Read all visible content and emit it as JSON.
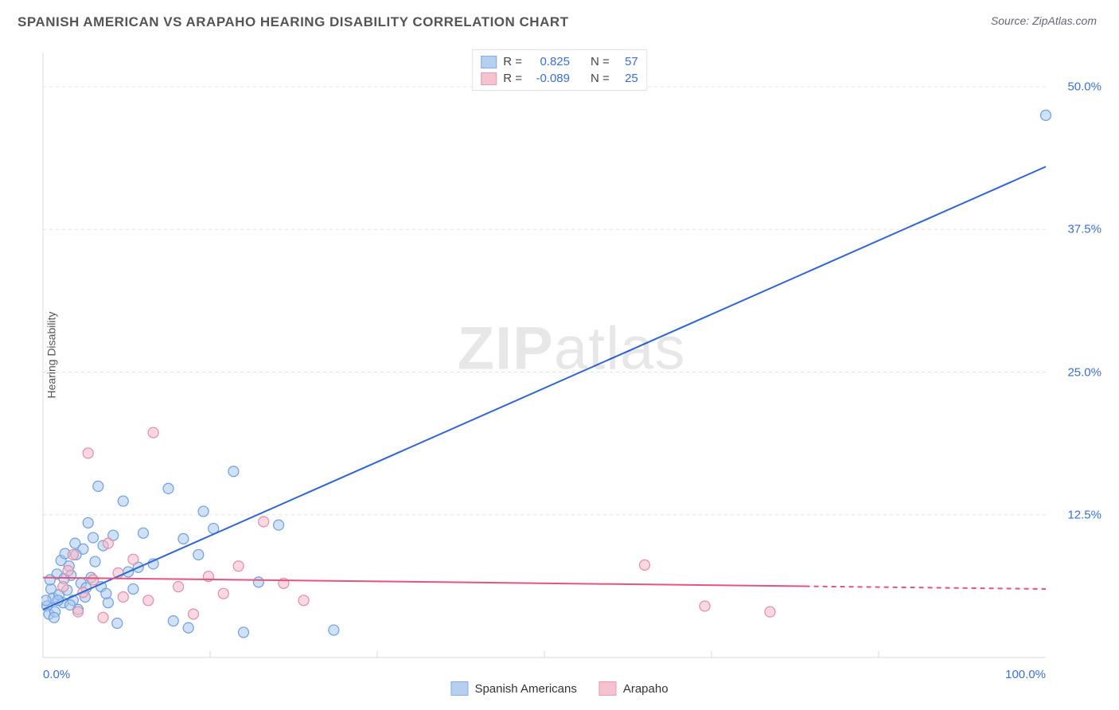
{
  "title": "SPANISH AMERICAN VS ARAPAHO HEARING DISABILITY CORRELATION CHART",
  "source": "Source: ZipAtlas.com",
  "ylabel": "Hearing Disability",
  "watermark_bold": "ZIP",
  "watermark_light": "atlas",
  "chart": {
    "type": "scatter-with-regression",
    "xlim": [
      0,
      100
    ],
    "ylim": [
      0,
      53
    ],
    "xticks": [
      0,
      100
    ],
    "xtick_labels": [
      "0.0%",
      "100.0%"
    ],
    "xtick_minor": [
      16.67,
      33.33,
      50,
      66.67,
      83.33
    ],
    "yticks": [
      12.5,
      25.0,
      37.5,
      50.0
    ],
    "ytick_labels": [
      "12.5%",
      "25.0%",
      "37.5%",
      "50.0%"
    ],
    "background_color": "#ffffff",
    "grid_color": "#e0e4e9",
    "axis_color": "#d5dae1",
    "marker_radius": 6.5,
    "marker_stroke_width": 1.2,
    "line_width": 2
  },
  "series": [
    {
      "name": "Spanish Americans",
      "fill": "#aac7ec",
      "fill_opacity": 0.55,
      "stroke": "#6f9fdd",
      "line_color": "#2f66d4",
      "R": "0.825",
      "N": "57",
      "regression": {
        "x1": 0,
        "y1": 4.2,
        "x2": 100,
        "y2": 43.0,
        "dashed_from_x": null
      },
      "points": [
        [
          100,
          47.5
        ],
        [
          0.4,
          4.5
        ],
        [
          0.6,
          3.8
        ],
        [
          0.8,
          6.0
        ],
        [
          1.0,
          5.2
        ],
        [
          1.2,
          4.0
        ],
        [
          1.4,
          7.3
        ],
        [
          1.6,
          5.5
        ],
        [
          1.8,
          8.5
        ],
        [
          2.0,
          4.8
        ],
        [
          2.2,
          9.1
        ],
        [
          2.4,
          5.9
        ],
        [
          2.6,
          8.0
        ],
        [
          2.8,
          7.2
        ],
        [
          3.0,
          5.0
        ],
        [
          3.2,
          10.0
        ],
        [
          3.5,
          4.2
        ],
        [
          3.8,
          6.5
        ],
        [
          4.0,
          9.5
        ],
        [
          4.2,
          5.3
        ],
        [
          4.5,
          11.8
        ],
        [
          4.8,
          7.0
        ],
        [
          5.2,
          8.4
        ],
        [
          5.5,
          15.0
        ],
        [
          5.8,
          6.2
        ],
        [
          6.0,
          9.8
        ],
        [
          6.5,
          4.8
        ],
        [
          7.0,
          10.7
        ],
        [
          7.4,
          3.0
        ],
        [
          8.0,
          13.7
        ],
        [
          8.5,
          7.5
        ],
        [
          9.0,
          6.0
        ],
        [
          10.0,
          10.9
        ],
        [
          11.0,
          8.2
        ],
        [
          12.5,
          14.8
        ],
        [
          13.0,
          3.2
        ],
        [
          14.0,
          10.4
        ],
        [
          14.5,
          2.6
        ],
        [
          15.5,
          9.0
        ],
        [
          16.0,
          12.8
        ],
        [
          17.0,
          11.3
        ],
        [
          19.0,
          16.3
        ],
        [
          20.0,
          2.2
        ],
        [
          21.5,
          6.6
        ],
        [
          23.5,
          11.6
        ],
        [
          29.0,
          2.4
        ],
        [
          0.3,
          5.0
        ],
        [
          0.7,
          6.8
        ],
        [
          1.1,
          3.5
        ],
        [
          1.5,
          5.0
        ],
        [
          2.1,
          6.9
        ],
        [
          2.7,
          4.6
        ],
        [
          3.3,
          9.0
        ],
        [
          4.3,
          6.1
        ],
        [
          5.0,
          10.5
        ],
        [
          6.3,
          5.6
        ],
        [
          9.5,
          7.9
        ]
      ]
    },
    {
      "name": "Arapaho",
      "fill": "#f4b9c8",
      "fill_opacity": 0.55,
      "stroke": "#e78aa4",
      "line_color": "#e6537d",
      "R": "-0.089",
      "N": "25",
      "regression": {
        "x1": 0,
        "y1": 7.0,
        "x2": 100,
        "y2": 6.0,
        "dashed_from_x": 76
      },
      "points": [
        [
          2.0,
          6.2
        ],
        [
          3.0,
          9.0
        ],
        [
          3.5,
          4.0
        ],
        [
          4.5,
          17.9
        ],
        [
          5.0,
          6.8
        ],
        [
          6.0,
          3.5
        ],
        [
          6.5,
          10.0
        ],
        [
          7.5,
          7.4
        ],
        [
          8.0,
          5.3
        ],
        [
          9.0,
          8.6
        ],
        [
          10.5,
          5.0
        ],
        [
          11.0,
          19.7
        ],
        [
          13.5,
          6.2
        ],
        [
          15.0,
          3.8
        ],
        [
          16.5,
          7.1
        ],
        [
          18.0,
          5.6
        ],
        [
          19.5,
          8.0
        ],
        [
          22.0,
          11.9
        ],
        [
          24.0,
          6.5
        ],
        [
          26.0,
          5.0
        ],
        [
          60.0,
          8.1
        ],
        [
          66.0,
          4.5
        ],
        [
          72.5,
          4.0
        ],
        [
          4.0,
          5.7
        ],
        [
          2.5,
          7.6
        ]
      ]
    }
  ],
  "legend_top": {
    "r_label": "R =",
    "n_label": "N ="
  },
  "legend_bottom": [
    {
      "label": "Spanish Americans",
      "series_index": 0
    },
    {
      "label": "Arapaho",
      "series_index": 1
    }
  ]
}
